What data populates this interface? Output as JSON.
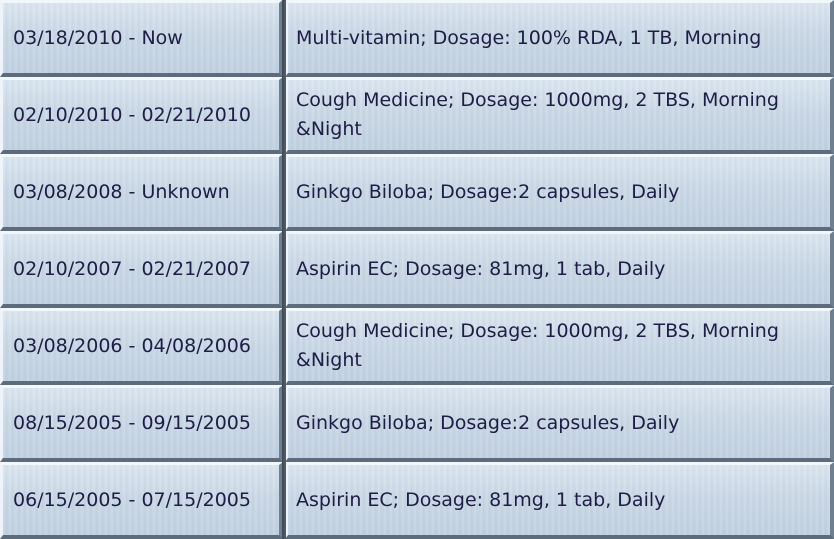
{
  "medication_history": {
    "rows": [
      {
        "period": "03/18/2010 - Now",
        "medication": "Multi-vitamin; Dosage: 100% RDA, 1 TB, Morning"
      },
      {
        "period": "02/10/2010 - 02/21/2010",
        "medication": "Cough Medicine; Dosage: 1000mg, 2 TBS, Morning &Night"
      },
      {
        "period": "03/08/2008 - Unknown",
        "medication": "Ginkgo Biloba; Dosage:2 capsules, Daily"
      },
      {
        "period": "02/10/2007 - 02/21/2007",
        "medication": "Aspirin EC; Dosage: 81mg, 1 tab, Daily"
      },
      {
        "period": "03/08/2006 - 04/08/2006",
        "medication": "Cough Medicine; Dosage: 1000mg, 2 TBS, Morning &Night"
      },
      {
        "period": "08/15/2005 - 09/15/2005",
        "medication": "Ginkgo Biloba; Dosage:2 capsules, Daily"
      },
      {
        "period": "06/15/2005 - 07/15/2005",
        "medication": "Aspirin EC; Dosage: 81mg, 1 tab, Daily"
      }
    ]
  },
  "colors": {
    "cell_background": "#c8d7e6",
    "text": "#1d1d45",
    "bevel_dark": "#5d6c7c",
    "bevel_light": "#f2f7fb"
  }
}
